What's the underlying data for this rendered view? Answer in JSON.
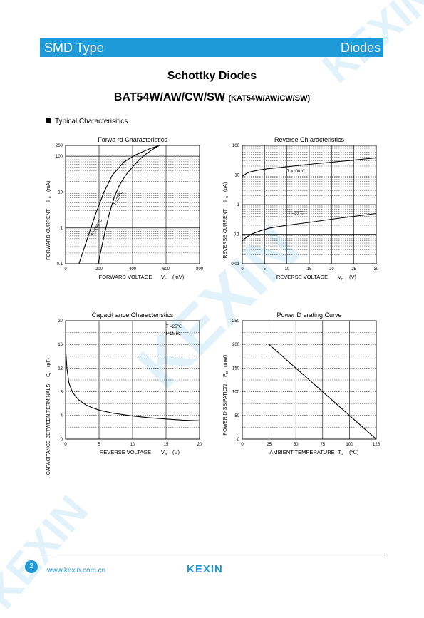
{
  "header": {
    "left": "SMD Type",
    "right": "Diodes"
  },
  "title": "Schottky Diodes",
  "subtitle": {
    "main": "BAT54W/AW/CW/SW",
    "alt": "(KAT54W/AW/CW/SW)"
  },
  "section_label": "Typical  Characterisitics",
  "footer": {
    "page": "2",
    "website": "www.kexin.com.cn",
    "logo": "KEXIN"
  },
  "watermark": "KEXIN",
  "colors": {
    "accent": "#1e9ad9"
  },
  "chart_data": [
    {
      "type": "line",
      "title": "Forwa rd Characteristics",
      "xlabel": "FORWARD VOLTAGE",
      "xsym": "V",
      "xsub": "F",
      "xunit": "(mV)",
      "ylabel": "FORWARD CURRENT",
      "ysym": "I",
      "ysub": "F",
      "yunit": "(mA)",
      "x_scale": "linear",
      "y_scale": "log",
      "xlim": [
        0,
        800
      ],
      "ylim": [
        0.1,
        200
      ],
      "xticks": [
        "0",
        "200",
        "400",
        "600",
        "800"
      ],
      "yticks": [
        "0.1",
        "1",
        "10",
        "100",
        "200"
      ],
      "grid": true,
      "series": [
        {
          "label": "T =100℃",
          "x": [
            80,
            130,
            180,
            230,
            280,
            350,
            420,
            500,
            560
          ],
          "y": [
            0.1,
            0.5,
            2.5,
            10,
            30,
            70,
            110,
            160,
            200
          ]
        },
        {
          "label": "T =25℃",
          "x": [
            195,
            230,
            260,
            290,
            320,
            360,
            400,
            440,
            480,
            520,
            560
          ],
          "y": [
            0.1,
            0.6,
            2.4,
            7,
            15,
            30,
            50,
            80,
            115,
            155,
            200
          ]
        }
      ]
    },
    {
      "type": "line",
      "title": "Reverse Ch aracteristics",
      "xlabel": "REVERSE VOLTAGE",
      "xsym": "V",
      "xsub": "R",
      "xunit": "(V)",
      "ylabel": "REVERSE CURRENT",
      "ysym": "I",
      "ysub": "R",
      "yunit": "(uA)",
      "x_scale": "linear",
      "y_scale": "log",
      "xlim": [
        0,
        30
      ],
      "ylim": [
        0.01,
        100
      ],
      "xticks": [
        "0",
        "5",
        "10",
        "15",
        "20",
        "25",
        "30"
      ],
      "yticks": [
        "0.01",
        "0.1",
        "1",
        "10",
        "100"
      ],
      "grid": true,
      "series": [
        {
          "label": "T =100℃",
          "x": [
            0,
            1,
            2,
            4,
            6,
            10,
            15,
            20,
            25,
            30
          ],
          "y": [
            9,
            11.5,
            13,
            15,
            16.5,
            19,
            23,
            27,
            32,
            38
          ]
        },
        {
          "label": "T =25℃",
          "x": [
            0,
            1,
            2,
            4,
            6,
            10,
            15,
            20,
            25,
            30
          ],
          "y": [
            0.06,
            0.08,
            0.1,
            0.13,
            0.16,
            0.2,
            0.25,
            0.32,
            0.4,
            0.5
          ]
        }
      ]
    },
    {
      "type": "line",
      "title": "Capacit ance Characteristics",
      "xlabel": "REVERSE VOLTAGE",
      "xsym": "V",
      "xsub": "R",
      "xunit": "(V)",
      "ylabel": "CAPACITANCE BETWEEN TERMINALS",
      "ysym": "C",
      "ysub": "t",
      "yunit": "(pF)",
      "x_scale": "linear",
      "y_scale": "linear",
      "xlim": [
        0,
        20
      ],
      "ylim": [
        0,
        20
      ],
      "xticks": [
        "0",
        "5",
        "10",
        "15",
        "20"
      ],
      "yticks": [
        "0",
        "4",
        "8",
        "12",
        "16",
        "20"
      ],
      "grid": true,
      "annotations": [
        "T =25℃",
        "f=1MHz"
      ],
      "series": [
        {
          "label": "",
          "x": [
            0,
            0.2,
            0.5,
            1,
            1.5,
            2,
            3,
            4,
            5,
            7,
            10,
            12.5,
            15,
            17.5,
            20
          ],
          "y": [
            15.5,
            12,
            9.5,
            8,
            7.2,
            6.6,
            5.8,
            5.3,
            4.9,
            4.4,
            3.9,
            3.6,
            3.4,
            3.2,
            3.1
          ]
        }
      ]
    },
    {
      "type": "line",
      "title": "Power D erating Curve",
      "xlabel": "AMBIENT TEMPERATURE",
      "xsym": "T",
      "xsub": "a",
      "xunit": "(℃)",
      "ylabel": "POWER DISSIPATION",
      "ysym": "P",
      "ysub": "D",
      "yunit": "(mW)",
      "x_scale": "linear",
      "y_scale": "linear",
      "xlim": [
        0,
        125
      ],
      "ylim": [
        0,
        250
      ],
      "xticks": [
        "0",
        "25",
        "50",
        "75",
        "100",
        "125"
      ],
      "yticks": [
        "0",
        "50",
        "100",
        "150",
        "200",
        "250"
      ],
      "grid": true,
      "series": [
        {
          "label": "",
          "x": [
            25,
            125
          ],
          "y": [
            200,
            0
          ]
        }
      ]
    }
  ]
}
